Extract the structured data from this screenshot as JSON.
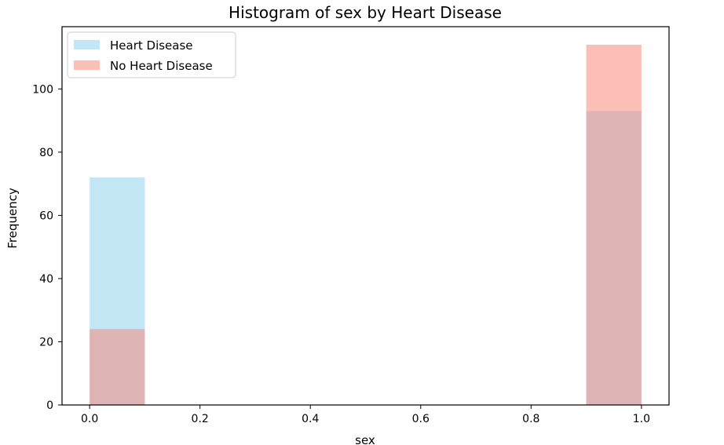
{
  "chart_data": {
    "type": "bar",
    "title": "Histogram of sex by Heart Disease",
    "xlabel": "sex",
    "ylabel": "Frequency",
    "xlim": [
      -0.05,
      1.05
    ],
    "ylim": [
      0,
      119.7
    ],
    "xticks": [
      "0.0",
      "0.2",
      "0.4",
      "0.6",
      "0.8",
      "1.0"
    ],
    "yticks": [
      "0",
      "20",
      "40",
      "60",
      "80",
      "100"
    ],
    "bins": [
      {
        "start": 0.0,
        "end": 0.1
      },
      {
        "start": 0.9,
        "end": 1.0
      }
    ],
    "series": [
      {
        "name": "Heart Disease",
        "color": "#87CEEB",
        "opacity": 0.5,
        "values": [
          72,
          93
        ]
      },
      {
        "name": "No Heart Disease",
        "color": "#FA8072",
        "opacity": 0.5,
        "values": [
          24,
          114
        ]
      }
    ],
    "legend_position": "top-left",
    "grid": false
  }
}
